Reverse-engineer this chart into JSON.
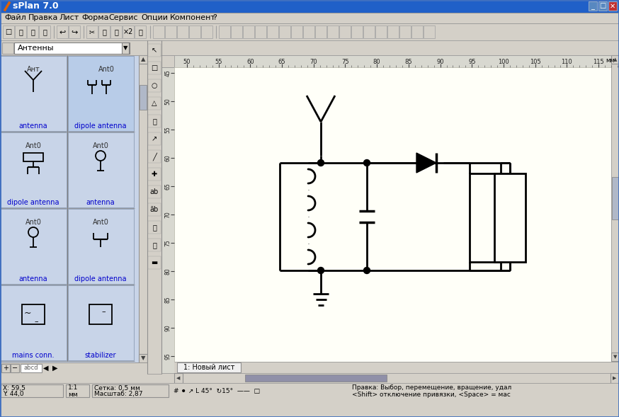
{
  "title_bar": "sPlan 7.0",
  "title_bar_color": "#2060c8",
  "bg_color": "#d4d0c8",
  "canvas_color": "#fffff8",
  "panel_bg": "#c8d0e0",
  "ruler_color": "#d8d8d8",
  "menu_items": [
    "Файл",
    "Правка",
    "Лист",
    "Форма",
    "Сервис",
    "Опции",
    "Компонент",
    "?"
  ],
  "dropdown_label": "Антенны",
  "ruler_ticks": [
    50,
    55,
    60,
    65,
    70,
    75,
    80,
    85,
    90,
    95,
    100,
    105,
    110,
    115
  ],
  "vticks": [
    45,
    50,
    55,
    60,
    65,
    70,
    75,
    80,
    85,
    90,
    95
  ],
  "tab_label": "1: Новый лист",
  "status_xy": "X: 59,5\nY: 44,0",
  "status_scale": "1:1\nмм",
  "status_grid": "Сетка: 0,5 мм\nМасштаб: 2,87",
  "status_hint": "Правка: Выбор, перемещение, вращение, удал",
  "status_hint2": "<Shift> отключение привязки, <Space> = мас"
}
